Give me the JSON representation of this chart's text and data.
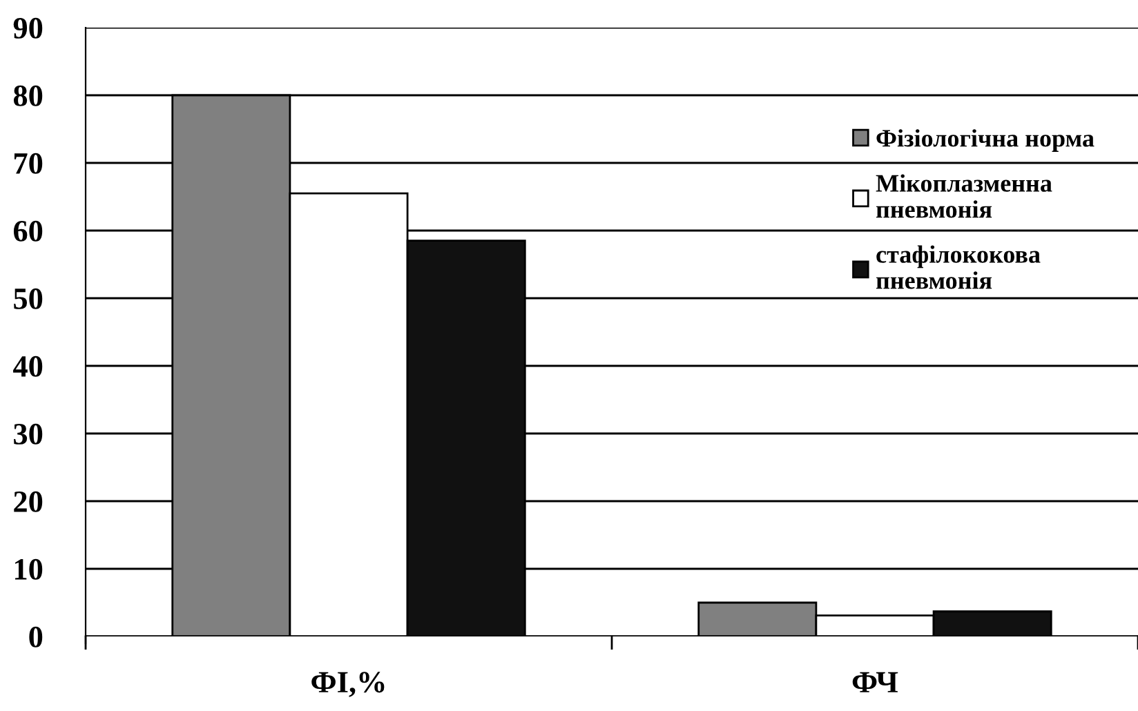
{
  "chart_data": {
    "type": "bar",
    "categories": [
      "ФІ,%",
      "ФЧ"
    ],
    "series": [
      {
        "name": "Фізіологічна норма",
        "color": "#808080",
        "values": [
          80,
          5
        ]
      },
      {
        "name": "Мікоплазменна\nпневмонія",
        "color": "#ffffff",
        "values": [
          65.5,
          3.1
        ]
      },
      {
        "name": "стафілококова\nпневмонія",
        "color": "#111111",
        "values": [
          58.5,
          3.7
        ]
      }
    ],
    "ylim": [
      0,
      90
    ],
    "yticks": [
      0,
      10,
      20,
      30,
      40,
      50,
      60,
      70,
      80,
      90
    ],
    "grid": "y",
    "legend": "top right"
  }
}
